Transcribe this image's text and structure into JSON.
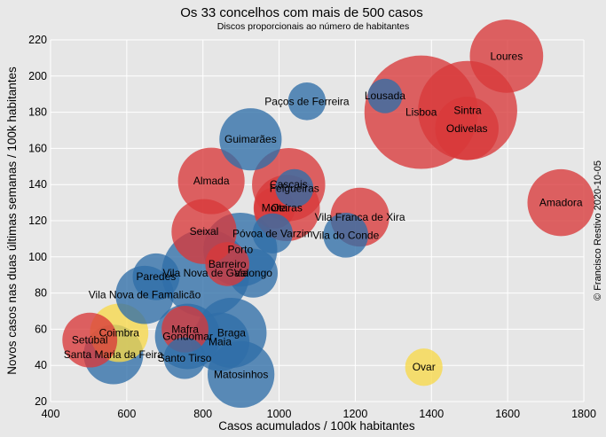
{
  "chart_data": {
    "type": "scatter",
    "title": "Os 33 concelhos com mais de 500 casos",
    "subtitle": "Discos proporcionais ao número de habitantes",
    "xlabel": "Casos acumulados / 100k habitantes",
    "ylabel": "Novos casos nas duas últimas semanas / 100k habitantes",
    "credit": "© Francisco Restivo 2020-10-05",
    "xlim": [
      400,
      1800
    ],
    "ylim": [
      20,
      220
    ],
    "xticks": [
      "400",
      "600",
      "800",
      "1000",
      "1200",
      "1400",
      "1600",
      "1800"
    ],
    "yticks": [
      "20",
      "40",
      "60",
      "80",
      "100",
      "120",
      "140",
      "160",
      "180",
      "200",
      "220"
    ],
    "grid": true,
    "colors": {
      "red": "#d9383a",
      "blue": "#2f6ea8",
      "yellow": "#f7d84a",
      "background": "#e8e8e8",
      "plot_background": "#e6e6e6",
      "grid": "#ffffff"
    },
    "points": [
      {
        "name": "Lisboa",
        "x": 1373,
        "y": 180,
        "color": "red",
        "population": 505000
      },
      {
        "name": "Sintra",
        "x": 1495,
        "y": 181,
        "color": "red",
        "population": 385000
      },
      {
        "name": "Odivelas",
        "x": 1493,
        "y": 171,
        "color": "red",
        "population": 158000
      },
      {
        "name": "Loures",
        "x": 1597,
        "y": 211,
        "color": "red",
        "population": 211000
      },
      {
        "name": "Amadora",
        "x": 1740,
        "y": 130,
        "color": "red",
        "population": 176000
      },
      {
        "name": "Lousada",
        "x": 1278,
        "y": 189,
        "color": "blue",
        "population": 47000
      },
      {
        "name": "Paços de Ferreira",
        "x": 1073,
        "y": 186,
        "color": "blue",
        "population": 56000
      },
      {
        "name": "Guimarães",
        "x": 925,
        "y": 165,
        "color": "blue",
        "population": 152000
      },
      {
        "name": "Almada",
        "x": 822,
        "y": 142,
        "color": "red",
        "population": 174000
      },
      {
        "name": "Cascais",
        "x": 1025,
        "y": 140,
        "color": "red",
        "population": 210000
      },
      {
        "name": "Felgueiras",
        "x": 1040,
        "y": 138,
        "color": "blue",
        "population": 57000
      },
      {
        "name": "Moita",
        "x": 988,
        "y": 127,
        "color": "red",
        "population": 66000
      },
      {
        "name": "Oeiras",
        "x": 1020,
        "y": 127,
        "color": "red",
        "population": 172000
      },
      {
        "name": "Vila Franca de Xira",
        "x": 1212,
        "y": 122,
        "color": "red",
        "population": 136000
      },
      {
        "name": "Vila do Conde",
        "x": 1175,
        "y": 112,
        "color": "blue",
        "population": 79000
      },
      {
        "name": "Póvoa de Varzim",
        "x": 983,
        "y": 113,
        "color": "blue",
        "population": 63000
      },
      {
        "name": "Seixal",
        "x": 803,
        "y": 114,
        "color": "red",
        "population": 166000
      },
      {
        "name": "Porto",
        "x": 898,
        "y": 104,
        "color": "blue",
        "population": 214000
      },
      {
        "name": "Barreiro",
        "x": 864,
        "y": 96,
        "color": "red",
        "population": 76000
      },
      {
        "name": "Vila Nova de Gaia",
        "x": 807,
        "y": 91,
        "color": "blue",
        "population": 303000
      },
      {
        "name": "Valongo",
        "x": 932,
        "y": 91,
        "color": "blue",
        "population": 94000
      },
      {
        "name": "Paredes",
        "x": 677,
        "y": 89,
        "color": "blue",
        "population": 86000
      },
      {
        "name": "Vila Nova de Famalicão",
        "x": 647,
        "y": 79,
        "color": "blue",
        "population": 133000
      },
      {
        "name": "Coimbra",
        "x": 580,
        "y": 58,
        "color": "yellow",
        "population": 134000
      },
      {
        "name": "Setúbal",
        "x": 503,
        "y": 54,
        "color": "red",
        "population": 118000
      },
      {
        "name": "Santa Maria da Feira",
        "x": 565,
        "y": 46,
        "color": "blue",
        "population": 139000
      },
      {
        "name": "Mafra",
        "x": 753,
        "y": 60,
        "color": "red",
        "population": 86000
      },
      {
        "name": "Gondomar",
        "x": 760,
        "y": 56,
        "color": "blue",
        "population": 168000
      },
      {
        "name": "Braga",
        "x": 875,
        "y": 58,
        "color": "blue",
        "population": 193000
      },
      {
        "name": "Maia",
        "x": 845,
        "y": 53,
        "color": "blue",
        "population": 135000
      },
      {
        "name": "Santo Tirso",
        "x": 752,
        "y": 44,
        "color": "blue",
        "population": 68000
      },
      {
        "name": "Matosinhos",
        "x": 900,
        "y": 35,
        "color": "blue",
        "population": 175000
      },
      {
        "name": "Ovar",
        "x": 1380,
        "y": 39,
        "color": "yellow",
        "population": 55000
      }
    ]
  }
}
